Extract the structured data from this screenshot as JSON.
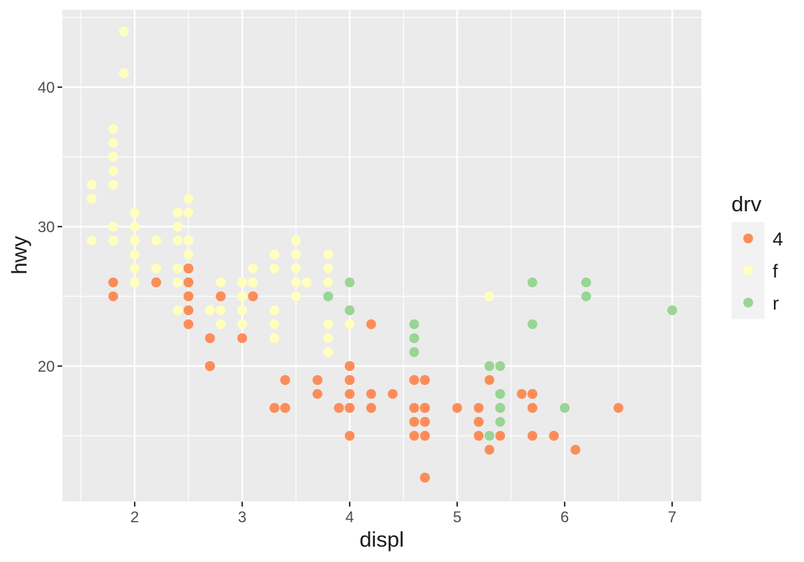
{
  "figure": {
    "background": "#FFFFFF",
    "panel": {
      "fill": "#EBEBEB",
      "grid_major_color": "#FFFFFF",
      "grid_minor_color": "#FFFFFF",
      "tick_mark_color": "#333333",
      "tick_label_color": "#4D4D4D",
      "title_color": "#1A1A1A"
    },
    "legend": {
      "title": "drv",
      "key_fill": "#F2F2F2",
      "entries": [
        {
          "label": "4",
          "color": "#FC8D59"
        },
        {
          "label": "f",
          "color": "#FFFFBF"
        },
        {
          "label": "r",
          "color": "#99D594"
        }
      ]
    }
  },
  "chart_data": {
    "type": "scatter",
    "title": "",
    "xlabel": "displ",
    "ylabel": "hwy",
    "color_by": "drv",
    "legend_position": "right",
    "grid": true,
    "xlim": [
      1.328,
      7.272
    ],
    "ylim": [
      10.3,
      45.55
    ],
    "x_ticks": [
      2,
      3,
      4,
      5,
      6,
      7
    ],
    "y_ticks": [
      20,
      30,
      40
    ],
    "x_tick_labels": [
      "2",
      "3",
      "4",
      "5",
      "6",
      "7"
    ],
    "y_tick_labels": [
      "20",
      "30",
      "40"
    ],
    "x_minor": [
      1.5,
      2.5,
      3.5,
      4.5,
      5.5,
      6.5
    ],
    "y_minor": [
      15,
      25,
      35,
      45
    ],
    "point_radius": 7,
    "colors": {
      "4": "#FC8D59",
      "f": "#FFFFBF",
      "r": "#99D594"
    },
    "points": [
      [
        1.8,
        29,
        "f"
      ],
      [
        1.8,
        29,
        "f"
      ],
      [
        2,
        31,
        "f"
      ],
      [
        2,
        30,
        "f"
      ],
      [
        2.8,
        26,
        "f"
      ],
      [
        2.8,
        26,
        "f"
      ],
      [
        3.1,
        27,
        "f"
      ],
      [
        1.8,
        26,
        "4"
      ],
      [
        1.8,
        25,
        "4"
      ],
      [
        2,
        28,
        "4"
      ],
      [
        2,
        27,
        "4"
      ],
      [
        2.8,
        25,
        "4"
      ],
      [
        2.8,
        25,
        "4"
      ],
      [
        3.1,
        25,
        "4"
      ],
      [
        3.1,
        25,
        "4"
      ],
      [
        2.8,
        24,
        "4"
      ],
      [
        3.1,
        25,
        "4"
      ],
      [
        4.2,
        23,
        "4"
      ],
      [
        5.3,
        20,
        "r"
      ],
      [
        5.3,
        15,
        "r"
      ],
      [
        5.3,
        20,
        "r"
      ],
      [
        5.7,
        17,
        "r"
      ],
      [
        6,
        17,
        "r"
      ],
      [
        5.7,
        26,
        "r"
      ],
      [
        5.7,
        23,
        "r"
      ],
      [
        6.2,
        26,
        "r"
      ],
      [
        6.2,
        25,
        "r"
      ],
      [
        7,
        24,
        "r"
      ],
      [
        5.3,
        19,
        "4"
      ],
      [
        5.3,
        14,
        "4"
      ],
      [
        5.7,
        15,
        "4"
      ],
      [
        6.5,
        17,
        "4"
      ],
      [
        2.4,
        27,
        "f"
      ],
      [
        2.4,
        30,
        "f"
      ],
      [
        3.1,
        26,
        "f"
      ],
      [
        3.5,
        29,
        "f"
      ],
      [
        3.6,
        26,
        "f"
      ],
      [
        2.4,
        24,
        "f"
      ],
      [
        3,
        24,
        "f"
      ],
      [
        3.3,
        22,
        "f"
      ],
      [
        3.3,
        22,
        "f"
      ],
      [
        3.3,
        24,
        "f"
      ],
      [
        3.3,
        24,
        "f"
      ],
      [
        3.3,
        17,
        "f"
      ],
      [
        3.8,
        22,
        "f"
      ],
      [
        3.8,
        21,
        "f"
      ],
      [
        3.8,
        23,
        "f"
      ],
      [
        4,
        23,
        "f"
      ],
      [
        3.7,
        19,
        "4"
      ],
      [
        3.7,
        18,
        "4"
      ],
      [
        3.9,
        17,
        "4"
      ],
      [
        3.9,
        17,
        "4"
      ],
      [
        4.7,
        19,
        "4"
      ],
      [
        4.7,
        19,
        "4"
      ],
      [
        4.7,
        12,
        "4"
      ],
      [
        5.2,
        17,
        "4"
      ],
      [
        5.2,
        15,
        "4"
      ],
      [
        3.9,
        17,
        "4"
      ],
      [
        4.7,
        17,
        "4"
      ],
      [
        4.7,
        12,
        "4"
      ],
      [
        4.7,
        17,
        "4"
      ],
      [
        5.2,
        16,
        "4"
      ],
      [
        5.7,
        18,
        "4"
      ],
      [
        5.9,
        15,
        "4"
      ],
      [
        4.7,
        16,
        "4"
      ],
      [
        4.7,
        12,
        "4"
      ],
      [
        4.7,
        17,
        "4"
      ],
      [
        4.7,
        17,
        "4"
      ],
      [
        4.7,
        16,
        "4"
      ],
      [
        5.2,
        15,
        "4"
      ],
      [
        5.2,
        16,
        "4"
      ],
      [
        5.7,
        17,
        "4"
      ],
      [
        5.9,
        15,
        "4"
      ],
      [
        4.6,
        17,
        "r"
      ],
      [
        5.4,
        17,
        "r"
      ],
      [
        5.4,
        18,
        "r"
      ],
      [
        4,
        17,
        "4"
      ],
      [
        4,
        19,
        "4"
      ],
      [
        4,
        17,
        "4"
      ],
      [
        4,
        19,
        "4"
      ],
      [
        4.6,
        19,
        "4"
      ],
      [
        4.2,
        17,
        "4"
      ],
      [
        4.2,
        17,
        "4"
      ],
      [
        4.6,
        16,
        "4"
      ],
      [
        4.6,
        16,
        "4"
      ],
      [
        4.6,
        17,
        "4"
      ],
      [
        5.4,
        15,
        "4"
      ],
      [
        5.4,
        17,
        "4"
      ],
      [
        3.8,
        26,
        "r"
      ],
      [
        3.8,
        25,
        "r"
      ],
      [
        4,
        26,
        "r"
      ],
      [
        4,
        24,
        "r"
      ],
      [
        4.6,
        21,
        "r"
      ],
      [
        4.6,
        22,
        "r"
      ],
      [
        4.6,
        23,
        "r"
      ],
      [
        4.6,
        22,
        "r"
      ],
      [
        5.4,
        20,
        "r"
      ],
      [
        1.6,
        33,
        "f"
      ],
      [
        1.6,
        32,
        "f"
      ],
      [
        1.6,
        32,
        "f"
      ],
      [
        1.6,
        29,
        "f"
      ],
      [
        1.6,
        32,
        "f"
      ],
      [
        1.8,
        34,
        "f"
      ],
      [
        1.8,
        36,
        "f"
      ],
      [
        1.8,
        36,
        "f"
      ],
      [
        2,
        29,
        "f"
      ],
      [
        2.4,
        26,
        "f"
      ],
      [
        2.4,
        27,
        "f"
      ],
      [
        2.4,
        30,
        "f"
      ],
      [
        2.4,
        31,
        "f"
      ],
      [
        2.5,
        26,
        "f"
      ],
      [
        2.5,
        26,
        "f"
      ],
      [
        3.3,
        28,
        "f"
      ],
      [
        2,
        26,
        "f"
      ],
      [
        2,
        29,
        "f"
      ],
      [
        2,
        28,
        "f"
      ],
      [
        2,
        27,
        "f"
      ],
      [
        2.7,
        24,
        "f"
      ],
      [
        2.7,
        24,
        "f"
      ],
      [
        2.7,
        24,
        "f"
      ],
      [
        3,
        22,
        "4"
      ],
      [
        3.7,
        19,
        "4"
      ],
      [
        4,
        20,
        "4"
      ],
      [
        4.7,
        17,
        "4"
      ],
      [
        4.7,
        12,
        "4"
      ],
      [
        4.7,
        19,
        "4"
      ],
      [
        5.7,
        18,
        "4"
      ],
      [
        6.1,
        14,
        "4"
      ],
      [
        4,
        15,
        "4"
      ],
      [
        4.2,
        18,
        "4"
      ],
      [
        4.4,
        18,
        "4"
      ],
      [
        4.6,
        15,
        "4"
      ],
      [
        5.4,
        17,
        "r"
      ],
      [
        5.4,
        16,
        "r"
      ],
      [
        5.4,
        18,
        "r"
      ],
      [
        4,
        17,
        "4"
      ],
      [
        4,
        19,
        "4"
      ],
      [
        4.6,
        19,
        "4"
      ],
      [
        5,
        17,
        "4"
      ],
      [
        2.4,
        29,
        "f"
      ],
      [
        2.4,
        27,
        "f"
      ],
      [
        2.5,
        31,
        "f"
      ],
      [
        2.5,
        32,
        "f"
      ],
      [
        3.5,
        27,
        "f"
      ],
      [
        3.5,
        26,
        "f"
      ],
      [
        3,
        26,
        "f"
      ],
      [
        3,
        25,
        "f"
      ],
      [
        3.5,
        25,
        "f"
      ],
      [
        3.3,
        17,
        "4"
      ],
      [
        3.3,
        17,
        "4"
      ],
      [
        4,
        20,
        "4"
      ],
      [
        5.6,
        18,
        "4"
      ],
      [
        3.1,
        26,
        "f"
      ],
      [
        3.8,
        26,
        "f"
      ],
      [
        3.8,
        27,
        "f"
      ],
      [
        3.8,
        28,
        "f"
      ],
      [
        5.3,
        25,
        "f"
      ],
      [
        2.5,
        25,
        "4"
      ],
      [
        2.5,
        24,
        "4"
      ],
      [
        2.5,
        27,
        "4"
      ],
      [
        2.5,
        25,
        "4"
      ],
      [
        2.5,
        26,
        "4"
      ],
      [
        2.5,
        23,
        "4"
      ],
      [
        2.2,
        26,
        "4"
      ],
      [
        2.2,
        26,
        "4"
      ],
      [
        2.5,
        26,
        "4"
      ],
      [
        2.5,
        26,
        "4"
      ],
      [
        2.5,
        25,
        "4"
      ],
      [
        2.5,
        27,
        "4"
      ],
      [
        2.5,
        25,
        "4"
      ],
      [
        2.5,
        27,
        "4"
      ],
      [
        2.7,
        20,
        "4"
      ],
      [
        2.7,
        20,
        "4"
      ],
      [
        3.4,
        19,
        "4"
      ],
      [
        3.4,
        17,
        "4"
      ],
      [
        4,
        20,
        "4"
      ],
      [
        4.7,
        17,
        "4"
      ],
      [
        2.2,
        29,
        "f"
      ],
      [
        2.2,
        27,
        "f"
      ],
      [
        2.4,
        31,
        "f"
      ],
      [
        2.4,
        31,
        "f"
      ],
      [
        3,
        26,
        "f"
      ],
      [
        3,
        26,
        "f"
      ],
      [
        3.5,
        28,
        "f"
      ],
      [
        2.2,
        27,
        "f"
      ],
      [
        2.2,
        29,
        "f"
      ],
      [
        2.4,
        31,
        "f"
      ],
      [
        2.4,
        31,
        "f"
      ],
      [
        3,
        26,
        "f"
      ],
      [
        3.3,
        27,
        "f"
      ],
      [
        1.8,
        30,
        "f"
      ],
      [
        1.8,
        33,
        "f"
      ],
      [
        1.8,
        35,
        "f"
      ],
      [
        1.8,
        37,
        "f"
      ],
      [
        1.8,
        35,
        "f"
      ],
      [
        4.7,
        15,
        "4"
      ],
      [
        5.7,
        18,
        "4"
      ],
      [
        3,
        23,
        "f"
      ],
      [
        3.3,
        23,
        "f"
      ],
      [
        2.7,
        22,
        "4"
      ],
      [
        2.7,
        20,
        "4"
      ],
      [
        2.7,
        22,
        "4"
      ],
      [
        3.4,
        17,
        "4"
      ],
      [
        3.4,
        19,
        "4"
      ],
      [
        4,
        18,
        "4"
      ],
      [
        4,
        20,
        "4"
      ],
      [
        4.7,
        15,
        "4"
      ],
      [
        4.7,
        15,
        "4"
      ],
      [
        4.7,
        17,
        "4"
      ],
      [
        5.7,
        17,
        "4"
      ],
      [
        2,
        29,
        "f"
      ],
      [
        2,
        26,
        "f"
      ],
      [
        2,
        29,
        "f"
      ],
      [
        2,
        29,
        "f"
      ],
      [
        2.8,
        24,
        "f"
      ],
      [
        1.9,
        44,
        "f"
      ],
      [
        2,
        29,
        "f"
      ],
      [
        2,
        26,
        "f"
      ],
      [
        2,
        29,
        "f"
      ],
      [
        2,
        29,
        "f"
      ],
      [
        2.5,
        29,
        "f"
      ],
      [
        2.5,
        29,
        "f"
      ],
      [
        2.8,
        23,
        "f"
      ],
      [
        2.8,
        24,
        "f"
      ],
      [
        1.9,
        44,
        "f"
      ],
      [
        1.9,
        41,
        "f"
      ],
      [
        2,
        29,
        "f"
      ],
      [
        2,
        26,
        "f"
      ],
      [
        2.5,
        28,
        "f"
      ],
      [
        2.5,
        29,
        "f"
      ],
      [
        1.8,
        29,
        "f"
      ],
      [
        1.8,
        29,
        "f"
      ],
      [
        2,
        28,
        "f"
      ],
      [
        2,
        29,
        "f"
      ],
      [
        2.8,
        26,
        "f"
      ],
      [
        2.8,
        26,
        "f"
      ],
      [
        3.6,
        26,
        "f"
      ]
    ]
  }
}
